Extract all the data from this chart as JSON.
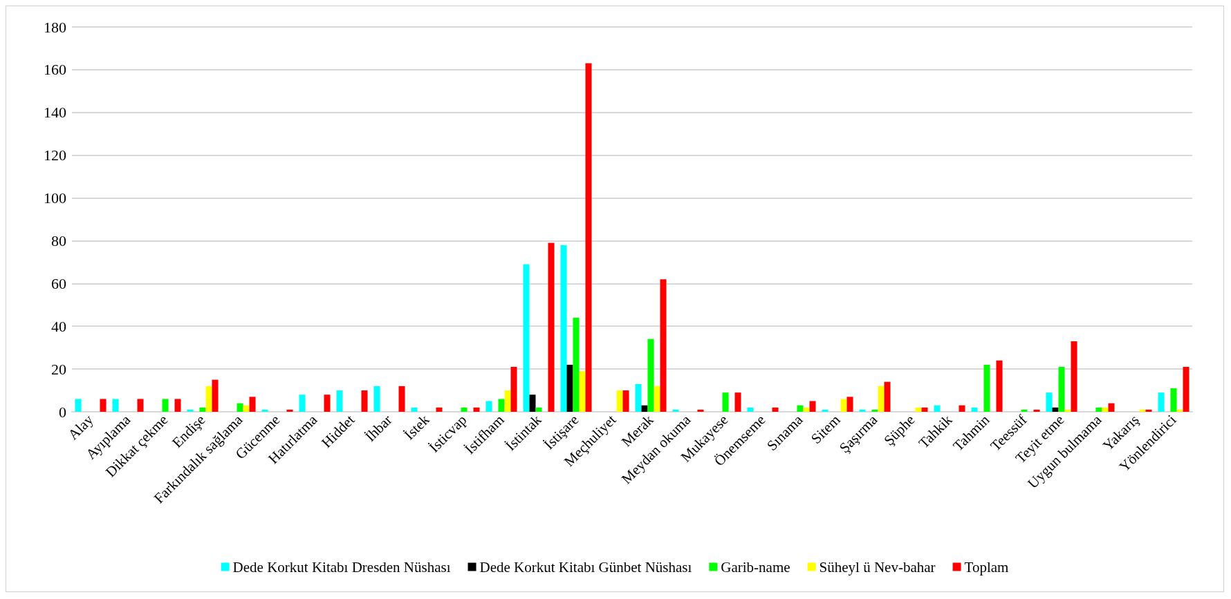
{
  "chart_data": {
    "type": "bar",
    "categories": [
      "Alay",
      "Ayıplama",
      "Dikkat çekme",
      "Endişe",
      "Farkındalık sağlama",
      "Gücenme",
      "Hatırlatma",
      "Hiddet",
      "İhbar",
      "İstek",
      "İsticvap",
      "İstifham",
      "İstintak",
      "İstişare",
      "Meçhuliyet",
      "Merak",
      "Meydan okuma",
      "Mukayese",
      "Önemseme",
      "Sınama",
      "Sitem",
      "Şaşırma",
      "Şüphe",
      "Tahkik",
      "Tahmin",
      "Teessüf",
      "Teyit etme",
      "Uygun bulmama",
      "Yakarış",
      "Yönlendirici"
    ],
    "series": [
      {
        "name": "Dede Korkut Kitabı Dresden Nüshası",
        "color": "#00ffff",
        "values": [
          6,
          6,
          null,
          1,
          null,
          1,
          8,
          10,
          12,
          2,
          null,
          5,
          69,
          78,
          null,
          13,
          1,
          null,
          2,
          null,
          1,
          1,
          null,
          3,
          2,
          null,
          9,
          null,
          null,
          9
        ]
      },
      {
        "name": "Dede Korkut Kitabı Günbet Nüshası",
        "color": "#000000",
        "values": [
          null,
          null,
          null,
          null,
          null,
          null,
          null,
          null,
          null,
          null,
          null,
          null,
          8,
          22,
          null,
          3,
          null,
          null,
          null,
          null,
          null,
          null,
          null,
          null,
          null,
          null,
          2,
          null,
          null,
          null
        ]
      },
      {
        "name": "Garib-name",
        "color": "#00ff00",
        "values": [
          null,
          null,
          6,
          2,
          4,
          null,
          null,
          null,
          null,
          null,
          2,
          6,
          2,
          44,
          null,
          34,
          null,
          9,
          null,
          3,
          null,
          1,
          null,
          null,
          22,
          1,
          21,
          2,
          null,
          11
        ]
      },
      {
        "name": "Süheyl ü Nev-bahar",
        "color": "#ffff00",
        "values": [
          null,
          null,
          null,
          12,
          3,
          null,
          null,
          null,
          null,
          null,
          null,
          10,
          null,
          19,
          10,
          12,
          null,
          null,
          null,
          2,
          6,
          12,
          2,
          null,
          null,
          null,
          1,
          2,
          1,
          1
        ]
      },
      {
        "name": "Toplam",
        "color": "#ff0000",
        "values": [
          6,
          6,
          6,
          15,
          7,
          1,
          8,
          10,
          12,
          2,
          2,
          21,
          79,
          163,
          10,
          62,
          1,
          9,
          2,
          5,
          7,
          14,
          2,
          3,
          24,
          1,
          33,
          4,
          1,
          21
        ]
      }
    ],
    "ylim": [
      0,
      180
    ],
    "yticks": [
      0,
      20,
      40,
      60,
      80,
      100,
      120,
      140,
      160,
      180
    ],
    "grid": "y",
    "legend": "bottom"
  }
}
